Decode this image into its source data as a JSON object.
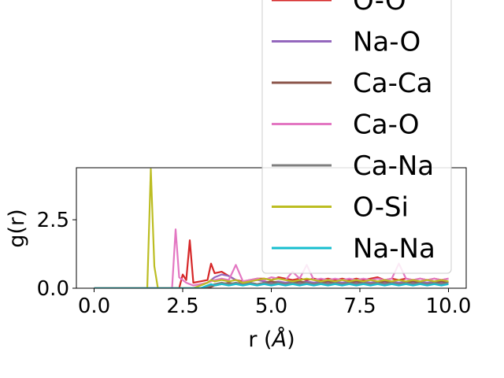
{
  "chart_data": {
    "type": "line",
    "title": "",
    "xlabel": "r (Å)",
    "ylabel": "g(r)",
    "xlim": [
      -0.5,
      10.5
    ],
    "ylim": [
      0,
      4.4
    ],
    "xticks": [
      0.0,
      2.5,
      5.0,
      7.5,
      10.0
    ],
    "xtick_labels": [
      "0.0",
      "2.5",
      "5.0",
      "7.5",
      "10.0"
    ],
    "yticks": [
      0.0,
      2.5
    ],
    "ytick_labels": [
      "0.0",
      "2.5"
    ],
    "grid": false,
    "legend_position": "upper-right, overflowing above the axes",
    "x": [
      0.0,
      0.5,
      1.0,
      1.5,
      1.6,
      1.7,
      1.8,
      2.0,
      2.2,
      2.3,
      2.4,
      2.5,
      2.6,
      2.7,
      2.8,
      3.0,
      3.2,
      3.3,
      3.4,
      3.6,
      3.8,
      4.0,
      4.2,
      4.4,
      4.6,
      4.8,
      5.0,
      5.2,
      5.4,
      5.6,
      5.8,
      6.0,
      6.2,
      6.4,
      6.6,
      6.8,
      7.0,
      7.2,
      7.4,
      7.6,
      7.8,
      8.0,
      8.2,
      8.4,
      8.6,
      8.8,
      9.0,
      9.2,
      9.4,
      9.6,
      9.8,
      10.0
    ],
    "series": [
      {
        "name": "O-O",
        "color": "#d62728",
        "values": [
          0,
          0,
          0,
          0,
          0,
          0,
          0,
          0,
          0,
          0,
          0,
          0.5,
          0.3,
          1.75,
          0.2,
          0.25,
          0.3,
          0.9,
          0.55,
          0.6,
          0.45,
          0.3,
          0.25,
          0.3,
          0.35,
          0.35,
          0.3,
          0.4,
          0.35,
          0.3,
          0.35,
          0.3,
          0.35,
          0.3,
          0.35,
          0.3,
          0.35,
          0.3,
          0.35,
          0.3,
          0.35,
          0.4,
          0.3,
          0.35,
          0.3,
          0.35,
          0.3,
          0.35,
          0.3,
          0.35,
          0.3,
          0.35
        ]
      },
      {
        "name": "Na-O",
        "color": "#9467bd",
        "values": [
          0,
          0,
          0,
          0,
          0,
          0,
          0,
          0,
          0,
          0,
          0,
          0,
          0,
          0,
          0,
          0.1,
          0.2,
          0.3,
          0.4,
          0.5,
          0.45,
          0.3,
          0.2,
          0.25,
          0.3,
          0.25,
          0.2,
          0.25,
          0.2,
          0.25,
          0.2,
          0.25,
          0.2,
          0.25,
          0.2,
          0.25,
          0.2,
          0.25,
          0.2,
          0.25,
          0.2,
          0.25,
          0.2,
          0.25,
          0.2,
          0.25,
          0.2,
          0.25,
          0.2,
          0.25,
          0.2,
          0.25
        ]
      },
      {
        "name": "Ca-Ca",
        "color": "#8c564b",
        "values": [
          0,
          0,
          0,
          0,
          0,
          0,
          0,
          0,
          0,
          0,
          0,
          0,
          0,
          0,
          0,
          0,
          0,
          0.05,
          0.1,
          0.15,
          0.2,
          0.15,
          0.25,
          0.2,
          0.15,
          0.2,
          0.25,
          0.2,
          0.15,
          0.2,
          0.25,
          0.2,
          0.15,
          0.2,
          0.25,
          0.2,
          0.15,
          0.2,
          0.25,
          0.2,
          0.15,
          0.2,
          0.25,
          0.2,
          0.15,
          0.2,
          0.25,
          0.2,
          0.15,
          0.2,
          0.25,
          0.2
        ]
      },
      {
        "name": "Ca-O",
        "color": "#e377c2",
        "values": [
          0,
          0,
          0,
          0,
          0,
          0,
          0,
          0,
          0,
          2.15,
          0.4,
          0.3,
          0.2,
          0.15,
          0.1,
          0.15,
          0.2,
          0.25,
          0.3,
          0.35,
          0.3,
          0.85,
          0.25,
          0.3,
          0.35,
          0.3,
          0.4,
          0.35,
          0.3,
          0.6,
          0.35,
          0.85,
          0.3,
          0.35,
          0.3,
          0.35,
          0.3,
          0.35,
          0.3,
          0.35,
          0.3,
          0.35,
          0.3,
          0.35,
          0.9,
          0.35,
          0.3,
          0.35,
          0.3,
          0.35,
          0.3,
          0.35
        ]
      },
      {
        "name": "Ca-Na",
        "color": "#7f7f7f",
        "values": [
          0,
          0,
          0,
          0,
          0,
          0,
          0,
          0,
          0,
          0,
          0,
          0,
          0,
          0,
          0,
          0,
          0.05,
          0.1,
          0.15,
          0.2,
          0.15,
          0.2,
          0.15,
          0.2,
          0.15,
          0.2,
          0.15,
          0.2,
          0.15,
          0.2,
          0.15,
          0.2,
          0.15,
          0.2,
          0.15,
          0.2,
          0.15,
          0.2,
          0.15,
          0.2,
          0.15,
          0.2,
          0.15,
          0.2,
          0.15,
          0.2,
          0.15,
          0.2,
          0.15,
          0.2,
          0.15,
          0.2
        ]
      },
      {
        "name": "O-Si",
        "color": "#bcbd22",
        "values": [
          0,
          0,
          0,
          0,
          4.35,
          0.8,
          0,
          0,
          0,
          0,
          0,
          0,
          0,
          0,
          0,
          0.1,
          0.2,
          0.3,
          0.25,
          0.3,
          0.25,
          0.3,
          0.2,
          0.25,
          0.3,
          0.35,
          0.3,
          0.35,
          0.3,
          0.25,
          0.3,
          0.35,
          0.3,
          0.25,
          0.3,
          0.25,
          0.3,
          0.25,
          0.3,
          0.25,
          0.3,
          0.25,
          0.3,
          0.25,
          0.3,
          0.25,
          0.3,
          0.25,
          0.3,
          0.25,
          0.3,
          0.25
        ]
      },
      {
        "name": "Na-Na",
        "color": "#17becf",
        "values": [
          0,
          0,
          0,
          0,
          0,
          0,
          0,
          0,
          0,
          0,
          0,
          0,
          0,
          0,
          0,
          0,
          0.1,
          0.15,
          0.1,
          0.15,
          0.1,
          0.15,
          0.1,
          0.15,
          0.1,
          0.15,
          0.1,
          0.15,
          0.1,
          0.15,
          0.1,
          0.15,
          0.1,
          0.15,
          0.1,
          0.15,
          0.1,
          0.15,
          0.1,
          0.15,
          0.1,
          0.15,
          0.1,
          0.15,
          0.1,
          0.15,
          0.1,
          0.15,
          0.1,
          0.15,
          0.1,
          0.15
        ]
      }
    ],
    "legend_entries": [
      "O-O",
      "Na-O",
      "Ca-Ca",
      "Ca-O",
      "Ca-Na",
      "O-Si",
      "Na-Na"
    ]
  }
}
